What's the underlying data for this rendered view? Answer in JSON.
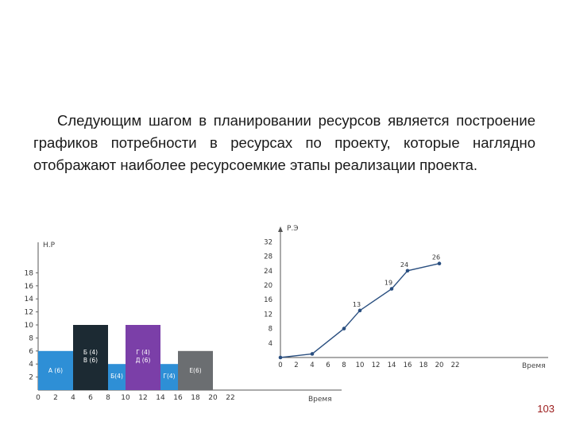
{
  "slide": {
    "paragraph": "Следующим шагом в планировании ресурсов является построение графиков потребности в ресурсах по проекту, которые наглядно отображают наиболее ресурсоемкие этапы реализации проекта.",
    "page_number": "103"
  },
  "chart_data": [
    {
      "type": "bar",
      "ylabel": "Н.Р",
      "xlabel": "Время",
      "x_ticks": [
        "0",
        "2",
        "4",
        "6",
        "8",
        "10",
        "12",
        "14",
        "16",
        "18",
        "20",
        "22"
      ],
      "y_ticks": [
        "2",
        "4",
        "6",
        "8",
        "10",
        "12",
        "14",
        "16",
        "18"
      ],
      "ylim": [
        0,
        19
      ],
      "xlim": [
        0,
        22
      ],
      "bars": [
        {
          "labels": [
            "А (6)"
          ],
          "x0": 0,
          "x1": 4,
          "y0": 0,
          "y1": 6,
          "color": "#2e8fd6",
          "text_color": "#ffffff"
        },
        {
          "labels": [
            "Б (4)",
            "В (6)"
          ],
          "x0": 4,
          "x1": 8,
          "y0": 0,
          "y1": 10,
          "color": "#1c2a33",
          "text_color": "#ffffff"
        },
        {
          "labels": [
            "Б(4)"
          ],
          "x0": 8,
          "x1": 10,
          "y0": 0,
          "y1": 4,
          "color": "#2e8fd6",
          "text_color": "#ffffff"
        },
        {
          "labels": [
            "Г (4)",
            "Д (6)"
          ],
          "x0": 10,
          "x1": 14,
          "y0": 0,
          "y1": 10,
          "color": "#7b3fa8",
          "text_color": "#ffffff"
        },
        {
          "labels": [
            "Г(4)"
          ],
          "x0": 14,
          "x1": 16,
          "y0": 0,
          "y1": 4,
          "color": "#2e8fd6",
          "text_color": "#ffffff"
        },
        {
          "labels": [
            "Е(6)"
          ],
          "x0": 16,
          "x1": 20,
          "y0": 0,
          "y1": 6,
          "color": "#6b6e71",
          "text_color": "#ffffff"
        }
      ]
    },
    {
      "type": "line",
      "ylabel": "Р.Э",
      "xlabel": "Время",
      "x_ticks": [
        "0",
        "2",
        "4",
        "6",
        "8",
        "10",
        "12",
        "14",
        "16",
        "18",
        "20",
        "22"
      ],
      "y_ticks": [
        "4",
        "8",
        "12",
        "16",
        "20",
        "24",
        "28",
        "32"
      ],
      "xlim": [
        0,
        22
      ],
      "ylim": [
        0,
        34
      ],
      "series": [
        {
          "x": [
            0,
            4,
            8,
            10,
            14,
            16,
            20
          ],
          "y": [
            0,
            1,
            8,
            13,
            19,
            24,
            26
          ],
          "labels": [
            "",
            "",
            "",
            "13",
            "19",
            "24",
            "26"
          ]
        }
      ],
      "color": "#2a4f80"
    }
  ]
}
